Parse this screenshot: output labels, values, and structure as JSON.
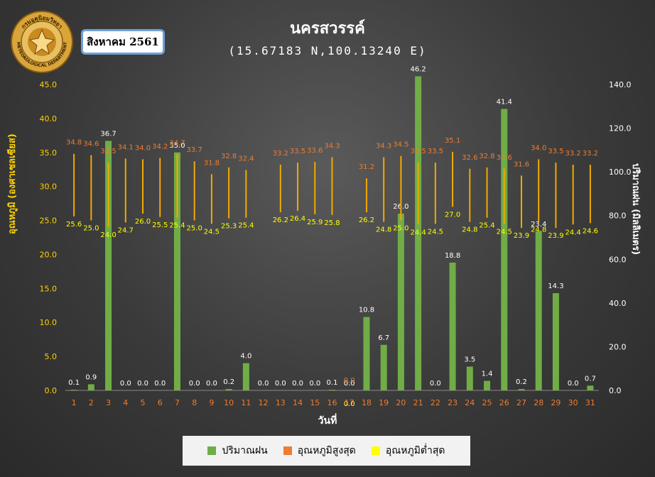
{
  "header": {
    "station": "นครสวรรค์",
    "coords": "(15.67183 N,100.13240 E)",
    "period": "สิงหาคม 2561"
  },
  "logo": {
    "text_top": "กรมอุตุนิยมวิทยา",
    "text_bottom": "METEOROLOGICAL DEPARTMENT"
  },
  "colors": {
    "rain": "#70ad47",
    "tmax_line": "#f2a900",
    "tmax_label": "#ed7d31",
    "tmin_label": "#ffff00",
    "axis_left": "#ffd200",
    "day_label": "#ed7d31"
  },
  "chart_data": {
    "type": "bar",
    "categories": [
      "1",
      "2",
      "3",
      "4",
      "5",
      "6",
      "7",
      "8",
      "9",
      "10",
      "11",
      "12",
      "13",
      "14",
      "15",
      "16",
      "17",
      "18",
      "19",
      "20",
      "21",
      "22",
      "23",
      "24",
      "25",
      "26",
      "27",
      "28",
      "29",
      "30",
      "31"
    ],
    "xlabel": "วันที่",
    "ylabel_left": "อุณหภูมิ (องศาเซลเซียส)",
    "ylabel_right": "ปริมาณฝน (มิลลิเมตร)",
    "ylim_left": [
      0,
      45
    ],
    "ylim_right": [
      0,
      140
    ],
    "yticks_left": [
      "0.0",
      "5.0",
      "10.0",
      "15.0",
      "20.0",
      "25.0",
      "30.0",
      "35.0",
      "40.0",
      "45.0"
    ],
    "yticks_right": [
      "0.0",
      "20.0",
      "40.0",
      "60.0",
      "80.0",
      "100.0",
      "120.0",
      "140.0"
    ],
    "series": [
      {
        "name": "ปริมาณฝน",
        "axis": "left",
        "values": [
          0.1,
          0.9,
          36.7,
          0.0,
          0.0,
          0.0,
          35.0,
          0.0,
          0.0,
          0.2,
          4.0,
          0.0,
          0.0,
          0.0,
          0.0,
          0.1,
          0.0,
          10.8,
          6.7,
          26.0,
          46.2,
          0.0,
          18.8,
          3.5,
          1.4,
          41.4,
          0.2,
          23.4,
          14.3,
          0.0,
          0.7
        ]
      },
      {
        "name": "อุณหภูมิสูงสุด",
        "axis": "right",
        "values": [
          34.8,
          34.6,
          33.5,
          34.1,
          34.0,
          34.2,
          34.7,
          33.7,
          31.8,
          32.8,
          32.4,
          null,
          33.2,
          33.5,
          33.6,
          34.3,
          null,
          31.2,
          34.3,
          34.5,
          33.5,
          33.5,
          35.1,
          32.6,
          32.8,
          32.6,
          31.6,
          34.0,
          33.5,
          33.2,
          33.2
        ]
      },
      {
        "name": "อุณหภูมิต่ำสุด",
        "axis": "right",
        "values": [
          25.6,
          25.0,
          24.0,
          24.7,
          26.0,
          25.5,
          25.4,
          25.0,
          24.5,
          25.3,
          25.4,
          null,
          26.2,
          26.4,
          25.9,
          25.8,
          null,
          26.2,
          24.8,
          25.0,
          24.4,
          24.5,
          27.0,
          24.8,
          25.4,
          24.5,
          23.9,
          24.8,
          23.9,
          24.4,
          24.6
        ]
      }
    ],
    "extra_labels": [
      {
        "category": "17",
        "text": "0.0"
      },
      {
        "category": "17",
        "text": "0.0"
      }
    ],
    "legend_position": "bottom"
  }
}
